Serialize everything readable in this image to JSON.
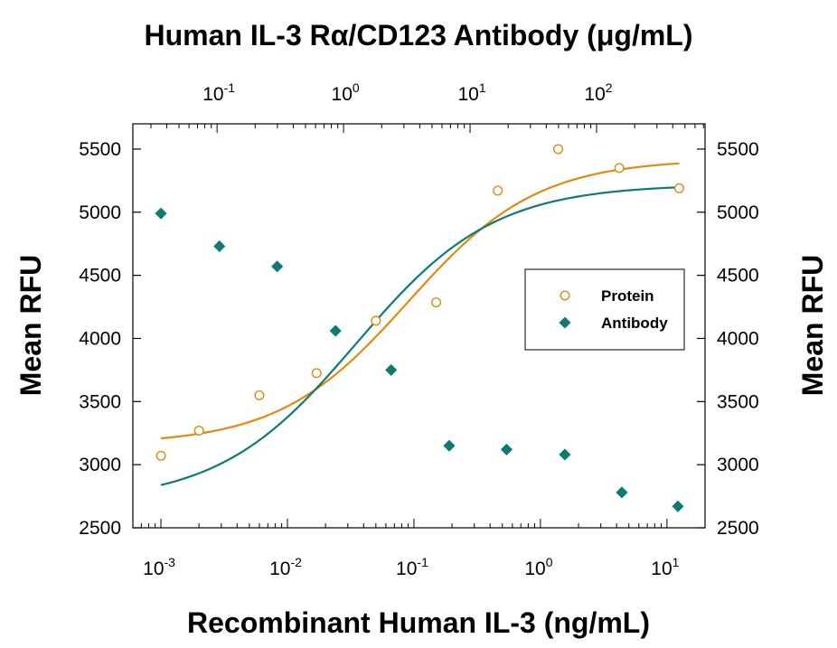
{
  "chart_data": {
    "type": "scatter",
    "title": "Human IL-3 Rα/CD123 Antibody (μg/mL)",
    "xlabel": "Recombinant Human IL-3 (ng/mL)",
    "ylabel_left": "Mean RFU",
    "ylabel_right": "Mean RFU",
    "x_scale": "log",
    "xlim": [
      0.0006,
      20
    ],
    "ylim": [
      2500,
      5700
    ],
    "y_ticks": [
      2500,
      3000,
      3500,
      4000,
      4500,
      5000,
      5500
    ],
    "x_ticks_bottom": [
      {
        "base": "10",
        "exp": "-3",
        "value": 0.001
      },
      {
        "base": "10",
        "exp": "-2",
        "value": 0.01
      },
      {
        "base": "10",
        "exp": "-1",
        "value": 0.1
      },
      {
        "base": "10",
        "exp": "0",
        "value": 1
      },
      {
        "base": "10",
        "exp": "1",
        "value": 10
      }
    ],
    "x_ticks_top": [
      {
        "base": "10",
        "exp": "-1",
        "value": 0.1
      },
      {
        "base": "10",
        "exp": "0",
        "value": 1
      },
      {
        "base": "10",
        "exp": "1",
        "value": 10
      },
      {
        "base": "10",
        "exp": "2",
        "value": 100
      }
    ],
    "top_axis_factor": 36,
    "legend_position": "right-middle",
    "series": [
      {
        "name": "Protein",
        "marker": "open-circle",
        "color": "#e08a10",
        "points": [
          [
            0.001,
            3070
          ],
          [
            0.002,
            3270
          ],
          [
            0.006,
            3550
          ],
          [
            0.017,
            3725
          ],
          [
            0.05,
            4140
          ],
          [
            0.15,
            4285
          ],
          [
            0.46,
            5170
          ],
          [
            1.38,
            5500
          ],
          [
            4.2,
            5350
          ],
          [
            12.5,
            5190
          ]
        ],
        "fit": {
          "bottom": 3160,
          "top": 5420,
          "ec50": 0.09,
          "hill": 0.85
        }
      },
      {
        "name": "Antibody",
        "marker": "filled-diamond",
        "color": "#0d7a73",
        "points": [
          [
            0.001,
            4990
          ],
          [
            0.0029,
            4730
          ],
          [
            0.0083,
            4570
          ],
          [
            0.024,
            4060
          ],
          [
            0.066,
            3750
          ],
          [
            0.19,
            3150
          ],
          [
            0.54,
            3120
          ],
          [
            1.56,
            3080
          ],
          [
            4.4,
            2780
          ],
          [
            12.2,
            2670
          ]
        ],
        "fit": {
          "bottom": 2700,
          "top": 5220,
          "ec50": 0.035,
          "hill": 0.8
        }
      }
    ]
  }
}
